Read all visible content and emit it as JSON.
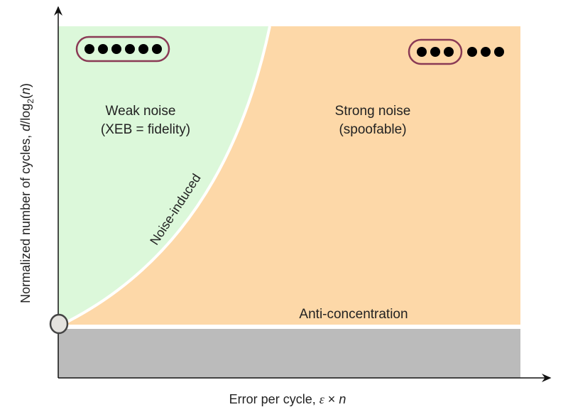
{
  "axes": {
    "x_label_prefix": "Error per cycle, ",
    "x_label_epsilon": "ε",
    "x_label_times": " × ",
    "x_label_n": "n",
    "y_label_prefix": "Normalized number of cycles, ",
    "y_label_d": "d",
    "y_label_log": "/log",
    "y_label_sub": "2",
    "y_label_open": "(",
    "y_label_n": "n",
    "y_label_close": ")"
  },
  "regions": {
    "weak": {
      "line1": "Weak noise",
      "line2": "(XEB = fidelity)",
      "color": "#dcf8da"
    },
    "strong": {
      "line1": "Strong noise",
      "line2": "(spoofable)",
      "color": "#fdd8a8"
    },
    "below": {
      "color": "#bbbbbb"
    }
  },
  "boundaries": {
    "noise_induced": "Noise-induced",
    "anti_concentration": "Anti-concentration"
  },
  "icons": {
    "weak_qubits": {
      "enclosed": 6,
      "free": 0
    },
    "strong_qubits": {
      "enclosed": 3,
      "free": 3
    },
    "enclosure_color": "#8a3a55"
  }
}
